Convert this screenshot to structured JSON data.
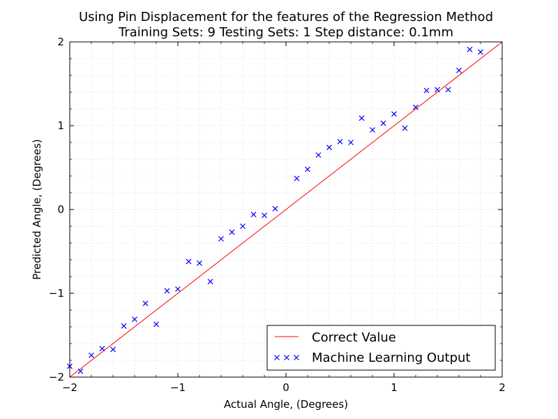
{
  "chart_data": {
    "type": "scatter",
    "title": "Using Pin Displacement for the features of the Regression Method",
    "subtitle": "Training Sets: 9    Testing Sets: 1    Step distance: 0.1mm",
    "xlabel": "Actual Angle, (Degrees)",
    "ylabel": "Predicted Angle, (Degrees)",
    "xlim": [
      -2,
      2
    ],
    "ylim": [
      -2,
      2
    ],
    "xticks": [
      -2,
      -1,
      0,
      1,
      2
    ],
    "yticks": [
      -2,
      -1,
      0,
      1,
      2
    ],
    "xtick_labels": [
      "−2",
      "−1",
      "0",
      "1",
      "2"
    ],
    "ytick_labels": [
      "−2",
      "−1",
      "0",
      "1",
      "2"
    ],
    "grid": true,
    "legend_position": "lower-right",
    "series": [
      {
        "name": "Correct Value",
        "kind": "line",
        "color": "#ff0000",
        "x": [
          -2,
          2
        ],
        "y": [
          -2,
          2
        ]
      },
      {
        "name": "Machine Learning Output",
        "kind": "scatter",
        "marker": "x",
        "color": "#0000ff",
        "x": [
          -2.0,
          -1.9,
          -1.8,
          -1.7,
          -1.6,
          -1.5,
          -1.4,
          -1.3,
          -1.2,
          -1.1,
          -1.0,
          -0.9,
          -0.8,
          -0.7,
          -0.6,
          -0.5,
          -0.4,
          -0.3,
          -0.2,
          -0.1,
          0.1,
          0.2,
          0.3,
          0.4,
          0.5,
          0.6,
          0.7,
          0.8,
          0.9,
          1.0,
          1.1,
          1.2,
          1.3,
          1.4,
          1.5,
          1.6,
          1.7,
          1.8
        ],
        "y": [
          -1.87,
          -1.93,
          -1.74,
          -1.66,
          -1.67,
          -1.39,
          -1.31,
          -1.12,
          -1.37,
          -0.97,
          -0.95,
          -0.62,
          -0.64,
          -0.86,
          -0.35,
          -0.27,
          -0.2,
          -0.06,
          -0.07,
          0.01,
          0.37,
          0.48,
          0.65,
          0.74,
          0.81,
          0.8,
          1.09,
          0.95,
          1.03,
          1.14,
          0.97,
          1.22,
          1.42,
          1.43,
          1.43,
          1.66,
          1.91,
          1.88
        ]
      }
    ]
  }
}
